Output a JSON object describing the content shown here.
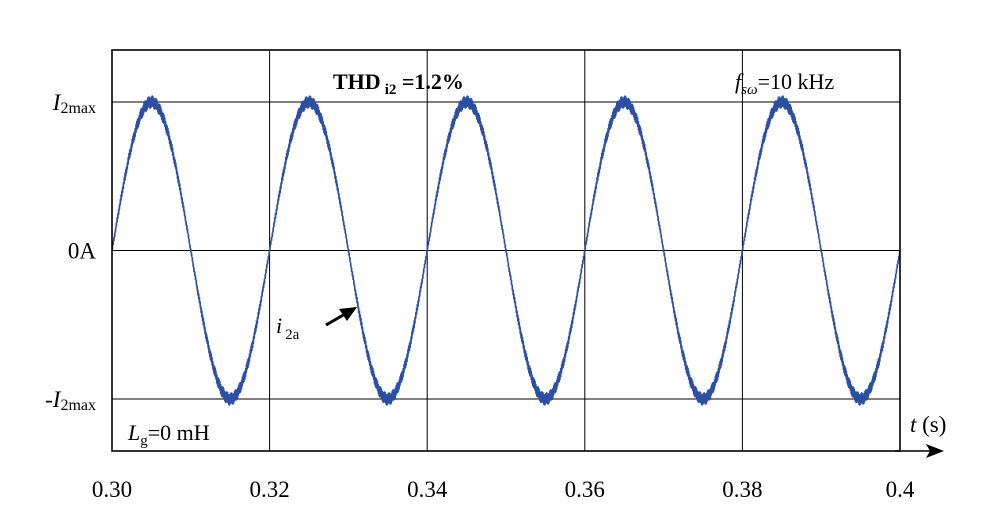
{
  "chart_data": {
    "type": "line",
    "title": "",
    "xlabel": {
      "italic": "t",
      "rest": " (s)"
    },
    "ylabel": "",
    "xlim": [
      0.3,
      0.4
    ],
    "ylim": [
      -1.35,
      1.35
    ],
    "x_ticks": [
      {
        "value": 0.3,
        "label": "0.30"
      },
      {
        "value": 0.32,
        "label": "0.32"
      },
      {
        "value": 0.34,
        "label": "0.34"
      },
      {
        "value": 0.36,
        "label": "0.36"
      },
      {
        "value": 0.38,
        "label": "0.38"
      },
      {
        "value": 0.4,
        "label": "0.4"
      }
    ],
    "y_ticks": [
      {
        "value": 1,
        "prefix": "",
        "main": "I",
        "sub": "2max"
      },
      {
        "value": 0,
        "prefix": "",
        "main": "0A",
        "sub": ""
      },
      {
        "value": -1,
        "prefix": "-",
        "main": "I",
        "sub": "2max"
      }
    ],
    "grid": true,
    "series": [
      {
        "label_main": "i",
        "label_sub": "2a",
        "color": "#2b4fa3",
        "frequency_hz": 50,
        "phase_zero_crossing_s": 0.3,
        "amplitude": 1,
        "ripple_amplitude": 0.045,
        "switching_frequency_hz": 10000
      }
    ],
    "annotations": {
      "thd": {
        "main": "THD",
        "sub": "i2",
        "value": " =1.2%"
      },
      "fsw": {
        "main": "f",
        "sub": "sω",
        "value": "=10 kHz"
      },
      "lg": {
        "main": "L",
        "sub": "g",
        "value": "=0 mH"
      }
    }
  }
}
